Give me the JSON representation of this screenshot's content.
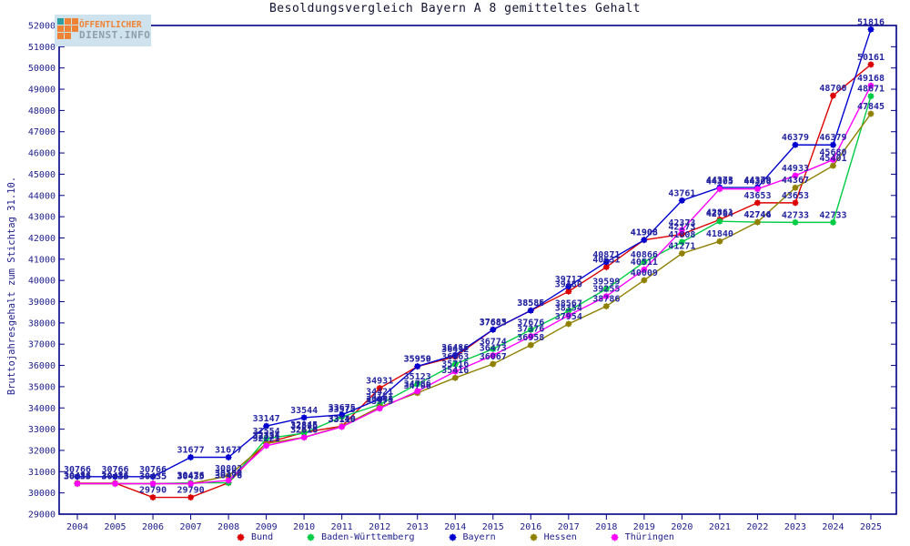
{
  "page": {
    "background": "#ffffff"
  },
  "logo": {
    "line1": "ÖFFENTLICHER",
    "line2": "DIENST.INFO",
    "bg": "#cfe3ee",
    "orange": "#f08233",
    "gray": "#8f9fa9",
    "teal": "#2f9e9e",
    "icon_cells": [
      "teal",
      "orange",
      "orange",
      "orange",
      "orange",
      "orange",
      "orange",
      "orange",
      "empty"
    ]
  },
  "chart_data": {
    "type": "line",
    "title": "Besoldungsvergleich Bayern A 8 gemitteltes Gehalt",
    "ylabel": "Bruttojahresgehalt zum Stichtag 31.10.",
    "xlabel": "",
    "ylim": [
      29000,
      52000
    ],
    "ytick_step": 1000,
    "grid": false,
    "legend_position": "bottom",
    "axis_color": "#000086",
    "tick_label_color": "#20208c",
    "data_label_color": "#2424a0",
    "categories": [
      2004,
      2005,
      2006,
      2007,
      2008,
      2009,
      2010,
      2011,
      2012,
      2013,
      2014,
      2015,
      2016,
      2017,
      2018,
      2019,
      2020,
      2021,
      2022,
      2023,
      2024,
      2025
    ],
    "series": [
      {
        "name": "Bund",
        "color": "#dd0000",
        "values": [
          30456,
          30456,
          29790,
          29790,
          30476,
          32354,
          32845,
          33140,
          34931,
          35950,
          36412,
          37683,
          38585,
          39480,
          40631,
          41908,
          42173,
          42861,
          43653,
          43653,
          48700,
          50161
        ]
      },
      {
        "name": "Baden-Württemberg",
        "color": "#00cc44",
        "values": [
          30435,
          30435,
          30435,
          30476,
          30476,
          32554,
          32816,
          33575,
          34161,
          35123,
          36063,
          36774,
          37676,
          38567,
          39599,
          40866,
          41808,
          42784,
          42744,
          42733,
          42733,
          48671
        ]
      },
      {
        "name": "Bayern",
        "color": "#0000d0",
        "values": [
          30766,
          30766,
          30766,
          31677,
          31677,
          33147,
          33544,
          33675,
          34421,
          35959,
          36486,
          37685,
          38586,
          39717,
          40871,
          41905,
          43761,
          44373,
          44379,
          46379,
          46379,
          51816
        ]
      },
      {
        "name": "Hessen",
        "color": "#8f8000",
        "values": [
          30435,
          30435,
          30435,
          30435,
          30802,
          32321,
          32616,
          33140,
          34045,
          34706,
          35416,
          36067,
          36958,
          37954,
          38786,
          40009,
          41271,
          41840,
          42746,
          44367,
          45401,
          47845
        ]
      },
      {
        "name": "Thüringen",
        "color": "#ff00ff",
        "values": [
          30435,
          30435,
          30435,
          30435,
          30589,
          32221,
          32610,
          33110,
          33975,
          34786,
          35716,
          36473,
          37376,
          38354,
          39255,
          40511,
          42373,
          44305,
          44306,
          44933,
          45680,
          49168
        ]
      }
    ]
  }
}
